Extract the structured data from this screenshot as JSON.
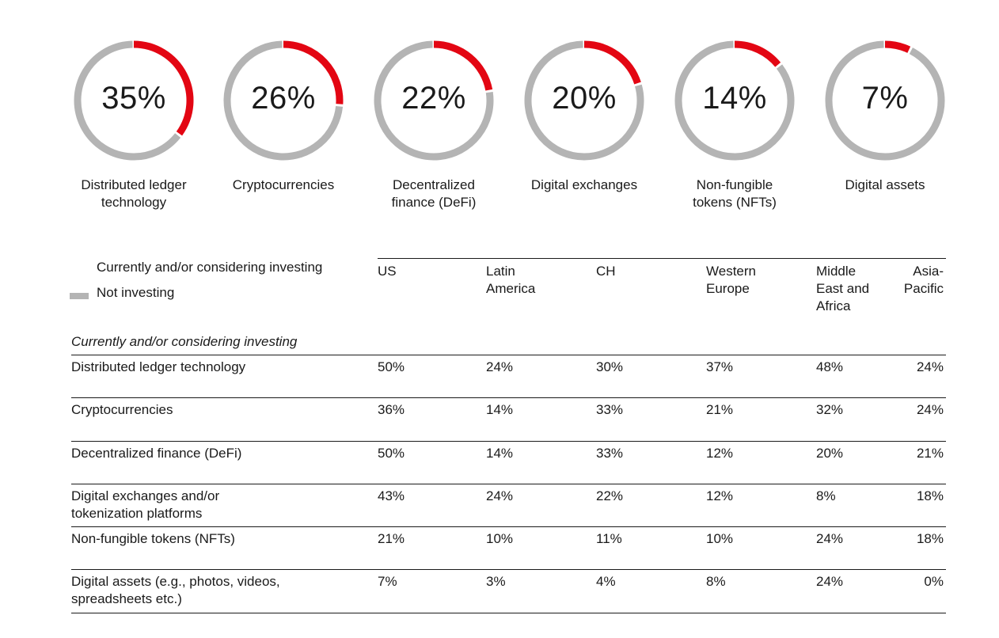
{
  "chart_data": {
    "type": "table",
    "donuts": [
      {
        "label": "Distributed ledger technology",
        "label_lines": [
          "Distributed ledger",
          "technology"
        ],
        "value": 35,
        "display": "35%"
      },
      {
        "label": "Cryptocurrencies",
        "label_lines": [
          "Cryptocurrencies",
          ""
        ],
        "value": 26,
        "display": "26%"
      },
      {
        "label": "Decentralized finance (DeFi)",
        "label_lines": [
          "Decentralized",
          "finance (DeFi)"
        ],
        "value": 22,
        "display": "22%"
      },
      {
        "label": "Digital exchanges",
        "label_lines": [
          "Digital exchanges",
          ""
        ],
        "value": 20,
        "display": "20%"
      },
      {
        "label": "Non-fungible tokens (NFTs)",
        "label_lines": [
          "Non-fungible",
          "tokens (NFTs)"
        ],
        "value": 14,
        "display": "14%"
      },
      {
        "label": "Digital assets",
        "label_lines": [
          "Digital assets",
          ""
        ],
        "value": 7,
        "display": "7%"
      }
    ],
    "legend": [
      {
        "label": "Currently and/or considering investing",
        "color": "#e30613"
      },
      {
        "label": "Not investing",
        "color": "#b4b4b4"
      }
    ],
    "table": {
      "section_title": "Currently and/or considering investing",
      "columns": [
        {
          "lines": [
            "US"
          ]
        },
        {
          "lines": [
            "Latin",
            "America"
          ]
        },
        {
          "lines": [
            "CH"
          ]
        },
        {
          "lines": [
            "Western",
            "Europe"
          ]
        },
        {
          "lines": [
            "Middle",
            "East and",
            "Africa"
          ]
        },
        {
          "lines": [
            "Asia-",
            "Pacific"
          ],
          "align": "right"
        }
      ],
      "rows": [
        {
          "label_lines": [
            "Distributed ledger technology"
          ],
          "values": [
            "50%",
            "24%",
            "30%",
            "37%",
            "48%",
            "24%"
          ]
        },
        {
          "label_lines": [
            "Cryptocurrencies"
          ],
          "values": [
            "36%",
            "14%",
            "33%",
            "21%",
            "32%",
            "24%"
          ]
        },
        {
          "label_lines": [
            "Decentralized finance (DeFi)"
          ],
          "values": [
            "50%",
            "14%",
            "33%",
            "12%",
            "20%",
            "21%"
          ]
        },
        {
          "label_lines": [
            "Digital exchanges and/or",
            "tokenization platforms"
          ],
          "values": [
            "43%",
            "24%",
            "22%",
            "12%",
            "8%",
            "18%"
          ]
        },
        {
          "label_lines": [
            "Non-fungible tokens (NFTs)"
          ],
          "values": [
            "21%",
            "10%",
            "11%",
            "10%",
            "24%",
            "18%"
          ]
        },
        {
          "label_lines": [
            "Digital assets (e.g., photos, videos,",
            "spreadsheets etc.)"
          ],
          "values": [
            "7%",
            "3%",
            "4%",
            "8%",
            "24%",
            "0%"
          ]
        }
      ]
    }
  },
  "colors": {
    "accent": "#e30613",
    "track": "#b4b4b4",
    "text": "#1a1a1a"
  }
}
